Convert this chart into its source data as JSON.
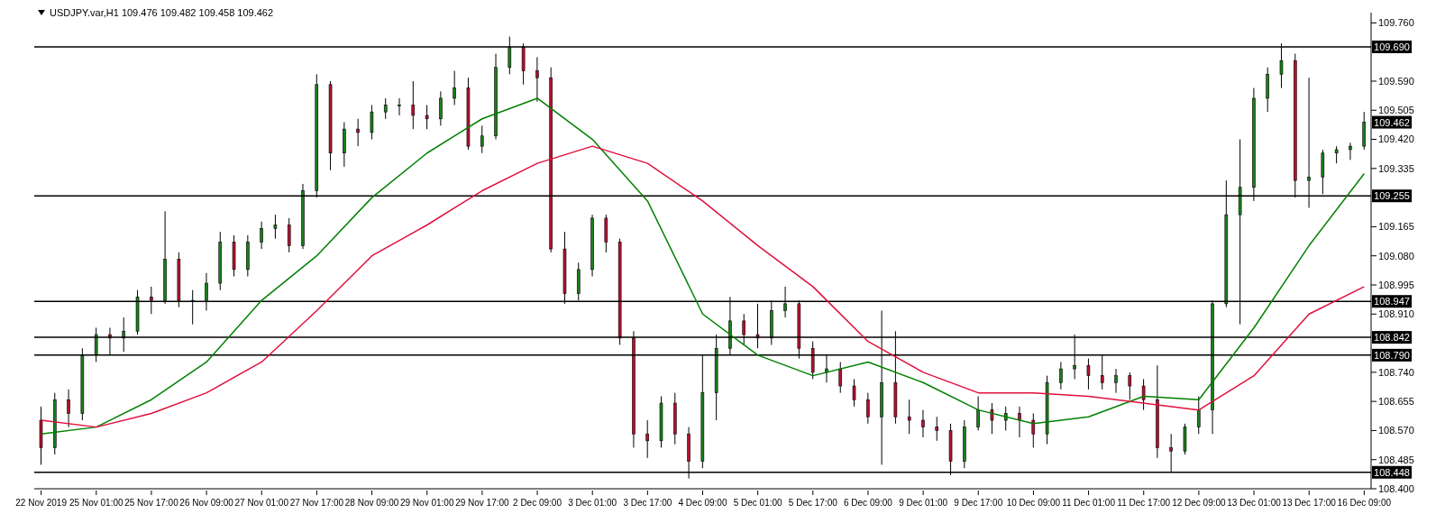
{
  "chart_data": {
    "type": "candlestick",
    "title": "USDJPY.var,H1  109.476 109.482 109.458 109.462",
    "categories": [
      "22 Nov 2019",
      null,
      null,
      null,
      "25 Nov 01:00",
      null,
      null,
      null,
      "25 Nov 17:00",
      null,
      null,
      null,
      "26 Nov 09:00",
      null,
      null,
      null,
      "27 Nov 01:00",
      null,
      null,
      null,
      "27 Nov 17:00",
      null,
      null,
      null,
      "28 Nov 09:00",
      null,
      null,
      null,
      "29 Nov 01:00",
      null,
      null,
      null,
      "29 Nov 17:00",
      null,
      null,
      null,
      "2 Dec 09:00",
      null,
      null,
      null,
      "3 Dec 01:00",
      null,
      null,
      null,
      "3 Dec 17:00",
      null,
      null,
      null,
      "4 Dec 09:00",
      null,
      null,
      null,
      "5 Dec 01:00",
      null,
      null,
      null,
      "5 Dec 17:00",
      null,
      null,
      null,
      "6 Dec 09:00",
      null,
      null,
      null,
      "9 Dec 01:00",
      null,
      null,
      null,
      "9 Dec 17:00",
      null,
      null,
      null,
      "10 Dec 09:00",
      null,
      null,
      null,
      "11 Dec 01:00",
      null,
      null,
      null,
      "11 Dec 17:00",
      null,
      null,
      null,
      "12 Dec 09:00",
      null,
      null,
      null,
      "13 Dec 01:00",
      null,
      null,
      null,
      "13 Dec 17:00",
      null,
      null,
      null,
      "16 Dec 09:00"
    ],
    "ohlc": [
      [
        108.6,
        108.64,
        108.47,
        108.52
      ],
      [
        108.52,
        108.68,
        108.5,
        108.66
      ],
      [
        108.66,
        108.69,
        108.58,
        108.62
      ],
      [
        108.62,
        108.81,
        108.6,
        108.79
      ],
      [
        108.79,
        108.87,
        108.77,
        108.85
      ],
      [
        108.85,
        108.87,
        108.79,
        108.84
      ],
      [
        108.84,
        108.9,
        108.8,
        108.86
      ],
      [
        108.86,
        108.98,
        108.85,
        108.96
      ],
      [
        108.96,
        108.99,
        108.91,
        108.95
      ],
      [
        108.95,
        109.21,
        108.94,
        109.07
      ],
      [
        109.07,
        109.09,
        108.93,
        108.95
      ],
      [
        108.95,
        108.98,
        108.88,
        108.95
      ],
      [
        108.95,
        109.03,
        108.92,
        109.0
      ],
      [
        109.0,
        109.15,
        108.98,
        109.12
      ],
      [
        109.12,
        109.14,
        109.02,
        109.04
      ],
      [
        109.04,
        109.14,
        109.02,
        109.12
      ],
      [
        109.12,
        109.18,
        109.1,
        109.16
      ],
      [
        109.16,
        109.2,
        109.13,
        109.17
      ],
      [
        109.17,
        109.19,
        109.09,
        109.11
      ],
      [
        109.11,
        109.29,
        109.1,
        109.27
      ],
      [
        109.27,
        109.61,
        109.25,
        109.58
      ],
      [
        109.58,
        109.59,
        109.33,
        109.38
      ],
      [
        109.38,
        109.47,
        109.34,
        109.45
      ],
      [
        109.45,
        109.48,
        109.4,
        109.44
      ],
      [
        109.44,
        109.52,
        109.42,
        109.5
      ],
      [
        109.5,
        109.54,
        109.48,
        109.52
      ],
      [
        109.52,
        109.54,
        109.49,
        109.52
      ],
      [
        109.52,
        109.59,
        109.45,
        109.49
      ],
      [
        109.49,
        109.52,
        109.45,
        109.48
      ],
      [
        109.48,
        109.56,
        109.46,
        109.54
      ],
      [
        109.54,
        109.62,
        109.52,
        109.57
      ],
      [
        109.57,
        109.6,
        109.39,
        109.4
      ],
      [
        109.4,
        109.46,
        109.38,
        109.43
      ],
      [
        109.43,
        109.67,
        109.42,
        109.63
      ],
      [
        109.63,
        109.72,
        109.61,
        109.69
      ],
      [
        109.69,
        109.7,
        109.58,
        109.62
      ],
      [
        109.62,
        109.66,
        109.53,
        109.6
      ],
      [
        109.6,
        109.63,
        109.09,
        109.1
      ],
      [
        109.1,
        109.15,
        108.94,
        108.97
      ],
      [
        108.97,
        109.06,
        108.95,
        109.04
      ],
      [
        109.04,
        109.2,
        109.02,
        109.19
      ],
      [
        109.19,
        109.2,
        109.09,
        109.12
      ],
      [
        109.12,
        109.13,
        108.82,
        108.84
      ],
      [
        108.84,
        108.86,
        108.52,
        108.56
      ],
      [
        108.56,
        108.6,
        108.49,
        108.54
      ],
      [
        108.54,
        108.67,
        108.52,
        108.65
      ],
      [
        108.65,
        108.68,
        108.53,
        108.56
      ],
      [
        108.56,
        108.58,
        108.43,
        108.48
      ],
      [
        108.48,
        108.79,
        108.46,
        108.68
      ],
      [
        108.68,
        108.85,
        108.6,
        108.81
      ],
      [
        108.81,
        108.96,
        108.79,
        108.89
      ],
      [
        108.89,
        108.91,
        108.82,
        108.85
      ],
      [
        108.85,
        108.94,
        108.81,
        108.84
      ],
      [
        108.84,
        108.95,
        108.82,
        108.92
      ],
      [
        108.92,
        108.99,
        108.9,
        108.94
      ],
      [
        108.94,
        108.95,
        108.78,
        108.81
      ],
      [
        108.81,
        108.83,
        108.72,
        108.74
      ],
      [
        108.74,
        108.79,
        108.71,
        108.75
      ],
      [
        108.75,
        108.77,
        108.68,
        108.7
      ],
      [
        108.7,
        108.72,
        108.64,
        108.66
      ],
      [
        108.66,
        108.68,
        108.59,
        108.61
      ],
      [
        108.61,
        108.92,
        108.47,
        108.71
      ],
      [
        108.71,
        108.86,
        108.59,
        108.61
      ],
      [
        108.61,
        108.66,
        108.56,
        108.6
      ],
      [
        108.6,
        108.63,
        108.55,
        108.58
      ],
      [
        108.58,
        108.61,
        108.54,
        108.57
      ],
      [
        108.57,
        108.59,
        108.44,
        108.48
      ],
      [
        108.48,
        108.6,
        108.46,
        108.58
      ],
      [
        108.58,
        108.67,
        108.57,
        108.63
      ],
      [
        108.63,
        108.65,
        108.56,
        108.6
      ],
      [
        108.6,
        108.64,
        108.57,
        108.62
      ],
      [
        108.62,
        108.64,
        108.55,
        108.6
      ],
      [
        108.6,
        108.62,
        108.52,
        108.56
      ],
      [
        108.56,
        108.73,
        108.53,
        108.71
      ],
      [
        108.71,
        108.77,
        108.69,
        108.75
      ],
      [
        108.75,
        108.85,
        108.72,
        108.76
      ],
      [
        108.76,
        108.78,
        108.69,
        108.73
      ],
      [
        108.73,
        108.79,
        108.69,
        108.71
      ],
      [
        108.71,
        108.75,
        108.68,
        108.73
      ],
      [
        108.73,
        108.74,
        108.66,
        108.7
      ],
      [
        108.7,
        108.72,
        108.63,
        108.66
      ],
      [
        108.66,
        108.76,
        108.49,
        108.52
      ],
      [
        108.52,
        108.56,
        108.45,
        108.51
      ],
      [
        108.51,
        108.59,
        108.5,
        108.58
      ],
      [
        108.58,
        108.67,
        108.56,
        108.63
      ],
      [
        108.63,
        108.95,
        108.56,
        108.94
      ],
      [
        108.94,
        109.3,
        108.93,
        109.2
      ],
      [
        109.2,
        109.42,
        108.88,
        109.28
      ],
      [
        109.28,
        109.57,
        109.24,
        109.54
      ],
      [
        109.54,
        109.63,
        109.5,
        109.61
      ],
      [
        109.61,
        109.7,
        109.57,
        109.65
      ],
      [
        109.65,
        109.67,
        109.25,
        109.3
      ],
      [
        109.3,
        109.6,
        109.22,
        109.31
      ],
      [
        109.31,
        109.39,
        109.26,
        109.38
      ],
      [
        109.38,
        109.4,
        109.35,
        109.39
      ],
      [
        109.39,
        109.41,
        109.36,
        109.4
      ],
      [
        109.4,
        109.5,
        109.39,
        109.47
      ]
    ],
    "series": [
      {
        "type": "line",
        "color": "#008000",
        "values": [
          108.56,
          null,
          null,
          null,
          108.58,
          null,
          null,
          null,
          108.66,
          null,
          null,
          null,
          108.77,
          null,
          null,
          null,
          108.95,
          null,
          null,
          null,
          109.08,
          null,
          null,
          null,
          109.25,
          null,
          null,
          null,
          109.38,
          null,
          null,
          null,
          109.48,
          null,
          null,
          null,
          109.54,
          null,
          null,
          null,
          109.42,
          null,
          null,
          null,
          109.24,
          null,
          null,
          null,
          108.91,
          null,
          null,
          null,
          108.79,
          null,
          null,
          null,
          108.73,
          null,
          null,
          null,
          108.77,
          null,
          null,
          null,
          108.71,
          null,
          null,
          null,
          108.63,
          null,
          null,
          null,
          108.59,
          null,
          null,
          null,
          108.61,
          null,
          null,
          null,
          108.67,
          null,
          null,
          null,
          108.66,
          null,
          null,
          null,
          108.87,
          null,
          null,
          null,
          109.11,
          null,
          null,
          null,
          109.32
        ]
      },
      {
        "type": "line",
        "color": "#e0103c",
        "values": [
          108.6,
          null,
          null,
          null,
          108.58,
          null,
          null,
          null,
          108.62,
          null,
          null,
          null,
          108.68,
          null,
          null,
          null,
          108.77,
          null,
          null,
          null,
          108.92,
          null,
          null,
          null,
          109.08,
          null,
          null,
          null,
          109.17,
          null,
          null,
          null,
          109.27,
          null,
          null,
          null,
          109.35,
          null,
          null,
          null,
          109.4,
          null,
          null,
          null,
          109.35,
          null,
          null,
          null,
          109.24,
          null,
          null,
          null,
          109.11,
          null,
          null,
          null,
          108.99,
          null,
          null,
          null,
          108.83,
          null,
          null,
          null,
          108.74,
          null,
          null,
          null,
          108.68,
          null,
          null,
          null,
          108.68,
          null,
          null,
          null,
          108.67,
          null,
          null,
          null,
          108.65,
          null,
          null,
          null,
          108.63,
          null,
          null,
          null,
          108.73,
          null,
          null,
          null,
          108.91,
          null,
          null,
          null,
          108.99
        ]
      }
    ],
    "ylim": [
      108.4,
      109.79
    ],
    "yticks": [
      {
        "value": 109.76,
        "label": "109.760"
      },
      {
        "value": 109.59,
        "label": "109.590"
      },
      {
        "value": 109.505,
        "label": "109.505"
      },
      {
        "value": 109.42,
        "label": "109.420"
      },
      {
        "value": 109.335,
        "label": "109.335"
      },
      {
        "value": 109.165,
        "label": "109.165"
      },
      {
        "value": 109.08,
        "label": "109.080"
      },
      {
        "value": 108.995,
        "label": "108.995"
      },
      {
        "value": 108.91,
        "label": "108.910"
      },
      {
        "value": 108.74,
        "label": "108.740"
      },
      {
        "value": 108.655,
        "label": "108.655"
      },
      {
        "value": 108.57,
        "label": "108.570"
      },
      {
        "value": 108.485,
        "label": "108.485"
      },
      {
        "value": 108.4,
        "label": "108.400"
      }
    ],
    "ref_lines": [
      {
        "axis": "y",
        "value": 109.69,
        "label": "109.690",
        "color": "#000000"
      },
      {
        "axis": "y",
        "value": 109.255,
        "label": "109.255",
        "color": "#000000"
      },
      {
        "axis": "y",
        "value": 108.947,
        "label": "108.947",
        "color": "#000000"
      },
      {
        "axis": "y",
        "value": 108.842,
        "label": "108.842",
        "color": "#000000"
      },
      {
        "axis": "y",
        "value": 108.79,
        "label": "108.790",
        "color": "#000000"
      },
      {
        "axis": "y",
        "value": 108.448,
        "label": "108.448",
        "color": "#000000"
      }
    ],
    "annotations": [
      "109.462"
    ],
    "marker": "none"
  }
}
